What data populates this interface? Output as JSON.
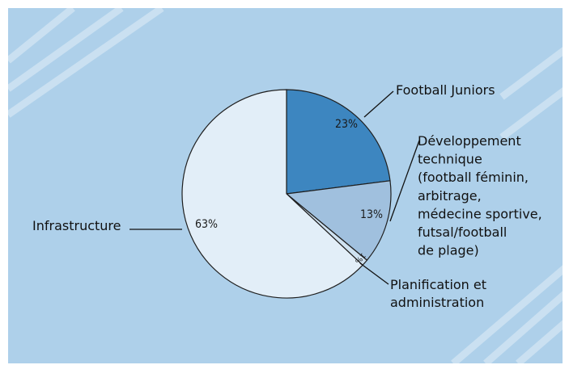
{
  "chart_data": {
    "type": "pie",
    "title": "",
    "slices": [
      {
        "label": "Football Juniors",
        "value": 23,
        "value_label": "23%",
        "color": "#3d86c0"
      },
      {
        "label": "Développement technique (football féminin, arbitrage, médecine sportive, futsal/football de plage)",
        "label_lines": [
          "Développement",
          "technique",
          "(football féminin,",
          "arbitrage,",
          "médecine sportive,",
          "futsal/football",
          "de plage)"
        ],
        "value": 13,
        "value_label": "13%",
        "color": "#a0c0de"
      },
      {
        "label": "Planification et administration",
        "label_lines": [
          "Planification et",
          "administration"
        ],
        "value": 1,
        "value_label": "1%",
        "color": "#cfe2f1"
      },
      {
        "label": "Infrastructure",
        "value": 63,
        "value_label": "63%",
        "color": "#e2eef8"
      }
    ],
    "start_angle": "12 o'clock",
    "direction": "clockwise",
    "legend": "none",
    "background_color": "#aed0ea"
  }
}
